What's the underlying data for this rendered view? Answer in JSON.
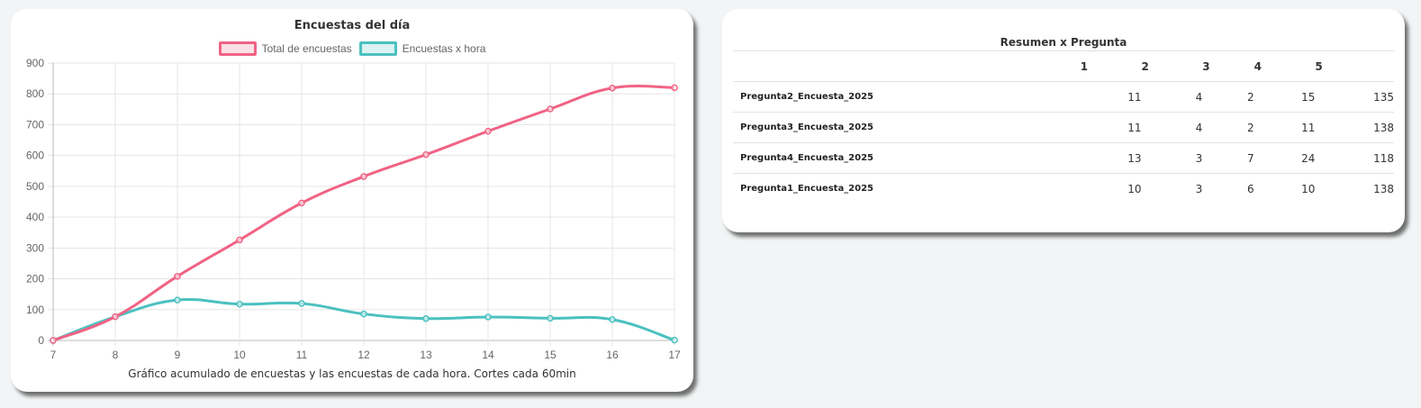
{
  "chart_card": {
    "title": "Encuestas del día",
    "caption": "Gráfico acumulado de encuestas y las encuestas de cada hora. Cortes cada 60min",
    "legend": [
      {
        "label": "Total de encuestas",
        "color": "#f06384",
        "fill": "#fbe0e6"
      },
      {
        "label": "Encuestas x hora",
        "color": "#4bc0c0",
        "fill": "#dbf2f2"
      }
    ]
  },
  "chart_data": {
    "type": "line",
    "title": "Encuestas del día",
    "xlabel": "Gráfico acumulado de encuestas y las encuestas de cada hora. Cortes cada 60min",
    "ylabel": "",
    "x": [
      7,
      8,
      9,
      10,
      11,
      12,
      13,
      14,
      15,
      16,
      17
    ],
    "ylim": [
      0,
      900
    ],
    "yticks": [
      0,
      100,
      200,
      300,
      400,
      500,
      600,
      700,
      800,
      900
    ],
    "grid": true,
    "legend_position": "top",
    "series": [
      {
        "name": "Total de encuestas",
        "color": "#f06384",
        "values": [
          0,
          77,
          208,
          326,
          446,
          532,
          603,
          679,
          751,
          819,
          820
        ]
      },
      {
        "name": "Encuestas x hora",
        "color": "#4bc0c0",
        "values": [
          0,
          77,
          131,
          118,
          120,
          86,
          71,
          76,
          72,
          68,
          1
        ]
      }
    ]
  },
  "table_card": {
    "title": "Resumen x Pregunta",
    "headers": [
      "",
      "1",
      "2",
      "3",
      "4",
      "5"
    ],
    "rows": [
      {
        "name": "Pregunta2_Encuesta_2025",
        "values": [
          "11",
          "4",
          "2",
          "15",
          "135"
        ]
      },
      {
        "name": "Pregunta3_Encuesta_2025",
        "values": [
          "11",
          "4",
          "2",
          "11",
          "138"
        ]
      },
      {
        "name": "Pregunta4_Encuesta_2025",
        "values": [
          "13",
          "3",
          "7",
          "24",
          "118"
        ]
      },
      {
        "name": "Pregunta1_Encuesta_2025",
        "values": [
          "10",
          "3",
          "6",
          "10",
          "138"
        ]
      }
    ]
  }
}
